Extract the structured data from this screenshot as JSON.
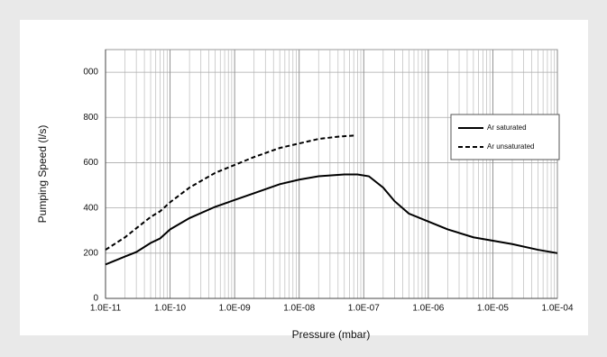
{
  "chart_data": {
    "type": "line",
    "xlabel": "Pressure (mbar)",
    "ylabel": "Pumping Speed (l/s)",
    "xscale": "log",
    "xlim": [
      1e-11,
      0.0001
    ],
    "xticks": [
      {
        "value": 1e-11,
        "label": "1.0E-11"
      },
      {
        "value": 1e-10,
        "label": "1.0E-10"
      },
      {
        "value": 1e-09,
        "label": "1.0E-09"
      },
      {
        "value": 1e-08,
        "label": "1.0E-08"
      },
      {
        "value": 1e-07,
        "label": "1.0E-07"
      },
      {
        "value": 1e-06,
        "label": "1.0E-06"
      },
      {
        "value": 1e-05,
        "label": "1.0E-05"
      },
      {
        "value": 0.0001,
        "label": "1.0E-04"
      }
    ],
    "ylim": [
      0,
      1100
    ],
    "yticks": [
      0,
      200,
      400,
      600,
      800,
      {
        "value": 1000,
        "label": "000"
      }
    ],
    "grid": true,
    "legend": "upper right",
    "series": [
      {
        "name": "Ar saturated",
        "color": "#000000",
        "linestyle": "solid",
        "x": [
          1e-11,
          2e-11,
          3e-11,
          5e-11,
          7e-11,
          1e-10,
          2e-10,
          5e-10,
          1e-09,
          2e-09,
          5e-09,
          1e-08,
          2e-08,
          5e-08,
          8e-08,
          1.2e-07,
          2e-07,
          3e-07,
          5e-07,
          1e-06,
          2e-06,
          5e-06,
          1e-05,
          2e-05,
          5e-05,
          0.0001
        ],
        "values": [
          150,
          185,
          205,
          245,
          265,
          305,
          355,
          405,
          435,
          465,
          505,
          525,
          540,
          548,
          548,
          540,
          490,
          430,
          375,
          340,
          305,
          270,
          255,
          240,
          215,
          200
        ]
      },
      {
        "name": "Ar unsaturated",
        "color": "#000000",
        "linestyle": "dashed",
        "x": [
          1e-11,
          2e-11,
          3e-11,
          5e-11,
          7e-11,
          1e-10,
          2e-10,
          5e-10,
          1e-09,
          2e-09,
          5e-09,
          1e-08,
          2e-08,
          4e-08,
          7e-08
        ],
        "values": [
          215,
          270,
          310,
          360,
          385,
          425,
          490,
          555,
          590,
          625,
          665,
          685,
          705,
          715,
          720
        ]
      }
    ]
  }
}
